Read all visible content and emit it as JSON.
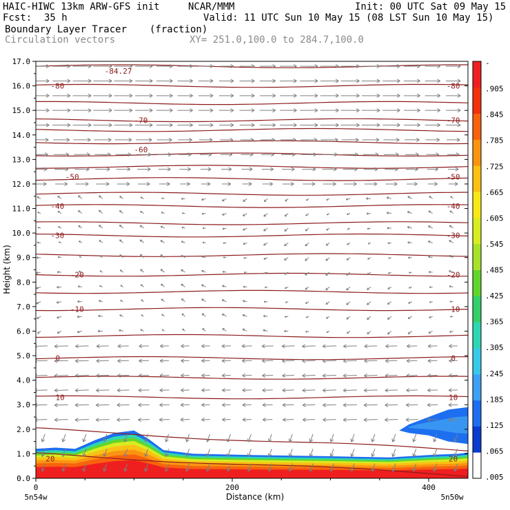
{
  "header": {
    "model": "HAIC-HIWC 13km ARW-GFS init",
    "org": "NCAR/MMM",
    "init": "Init: 00 UTC Sat 09 May 15",
    "fcst_label": "Fcst:",
    "fcst_value": "35 h",
    "valid": "Valid: 11 UTC Sun 10 May 15 (08 LST Sun 10 May 15)",
    "field": "Boundary Layer Tracer",
    "units": "(fraction)",
    "vectors": "Circulation vectors",
    "xy": "XY= 251.0,100.0 to 284.7,100.0"
  },
  "colors": {
    "contour": "#8b1a1a",
    "vector": "#7f7f7f",
    "colorbar": [
      "#ffffff",
      "#0a3ccf",
      "#1e6ef0",
      "#3ea0f2",
      "#38c9e8",
      "#2fd6b4",
      "#35cf6a",
      "#62d52c",
      "#a6e22a",
      "#d8ec22",
      "#f8e818",
      "#fbc014",
      "#fa9512",
      "#f8620e",
      "#f2320c",
      "#ef1f1f"
    ]
  },
  "chart_data": {
    "type": "cross-section",
    "xlabel": "Distance (km)",
    "ylabel": "Height (km)",
    "xlim": [
      0,
      440
    ],
    "ylim": [
      0.0,
      17.0
    ],
    "x_ticks": [
      0,
      200,
      400
    ],
    "y_ticks": [
      "0.0",
      "1.0",
      "2.0",
      "3.0",
      "4.0",
      "5.0",
      "6.0",
      "7.0",
      "8.0",
      "9.0",
      "10.0",
      "11.0",
      "12.0",
      "13.0",
      "14.0",
      "15.0",
      "16.0",
      "17.0"
    ],
    "x_endpoints": {
      "left": "5n54w",
      "right": "5n50w"
    },
    "colorbar_labels": [
      "-",
      ".905",
      ".845",
      ".785",
      ".725",
      ".665",
      ".605",
      ".545",
      ".485",
      ".425",
      ".365",
      ".305",
      ".245",
      ".185",
      ".125",
      ".065",
      ".005"
    ],
    "temperature_contours": [
      {
        "label": "-84.27",
        "x": 70,
        "y": 16.6,
        "side": "marker"
      },
      {
        "label": "-80",
        "x": 15,
        "y": 16.0,
        "right_label": "-80"
      },
      {
        "label": "-70",
        "x": 100,
        "y": 14.6,
        "right_label": "-70"
      },
      {
        "label": "-60",
        "x": 100,
        "y": 13.4
      },
      {
        "label": "-50",
        "x": 30,
        "y": 12.3,
        "right_label": "-50"
      },
      {
        "label": "-40",
        "x": 15,
        "y": 11.1,
        "right_label": "-40"
      },
      {
        "label": "-30",
        "x": 15,
        "y": 9.9,
        "right_label": "-30"
      },
      {
        "label": "-20",
        "x": 35,
        "y": 8.3,
        "right_label": "-20"
      },
      {
        "label": "-10",
        "x": 35,
        "y": 6.9,
        "right_label": "-10"
      },
      {
        "label": "0",
        "x": 20,
        "y": 4.9,
        "right_label": "0"
      },
      {
        "label": "10",
        "x": 20,
        "y": 3.3,
        "right_label": "10"
      },
      {
        "label": "20",
        "x": 10,
        "y": 0.8,
        "right_label": "20"
      }
    ],
    "contour_lines_y": [
      16.8,
      16.0,
      15.3,
      14.6,
      14.2,
      13.7,
      13.2,
      12.7,
      12.2,
      11.6,
      11.1,
      10.4,
      9.9,
      9.1,
      8.3,
      7.6,
      6.9,
      5.8,
      4.9,
      4.1,
      3.3,
      1.8,
      0.8
    ],
    "wind_vectors": {
      "upper": {
        "levels_from": 11.5,
        "levels_to": 16.8,
        "direction": "east"
      },
      "middle": {
        "levels_from": 6.0,
        "levels_to": 11.0,
        "direction": "weak-west"
      },
      "lower": {
        "levels_from": 0.5,
        "levels_to": 5.5,
        "direction": "west"
      }
    },
    "tracer_left": [
      [
        0,
        1.2
      ],
      [
        20,
        1.25
      ],
      [
        40,
        1.2
      ],
      [
        60,
        1.55
      ],
      [
        80,
        1.85
      ],
      [
        100,
        1.95
      ],
      [
        115,
        1.6
      ],
      [
        130,
        1.15
      ],
      [
        160,
        1.0
      ],
      [
        220,
        0.95
      ],
      [
        300,
        0.9
      ],
      [
        360,
        0.85
      ],
      [
        380,
        0.9
      ],
      [
        400,
        0.95
      ],
      [
        430,
        1.0
      ],
      [
        440,
        1.05
      ],
      [
        440,
        0
      ],
      [
        0,
        0
      ]
    ],
    "tracer_right": [
      [
        370,
        1.95
      ],
      [
        380,
        2.2
      ],
      [
        400,
        2.5
      ],
      [
        420,
        2.8
      ],
      [
        440,
        2.9
      ],
      [
        440,
        1.4
      ],
      [
        420,
        1.5
      ],
      [
        400,
        1.75
      ],
      [
        380,
        1.85
      ]
    ]
  }
}
